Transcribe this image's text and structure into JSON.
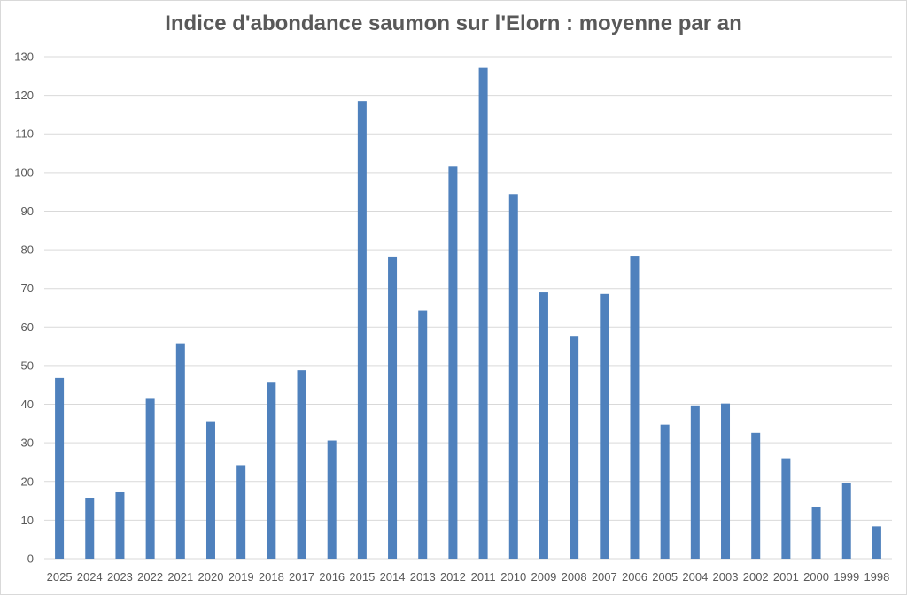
{
  "chart_data": {
    "type": "bar",
    "title": "Indice d'abondance saumon sur l'Elorn : moyenne par an",
    "xlabel": "",
    "ylabel": "",
    "categories": [
      "2025",
      "2024",
      "2023",
      "2022",
      "2021",
      "2020",
      "2019",
      "2018",
      "2017",
      "2016",
      "2015",
      "2014",
      "2013",
      "2012",
      "2011",
      "2010",
      "2009",
      "2008",
      "2007",
      "2006",
      "2005",
      "2004",
      "2003",
      "2002",
      "2001",
      "2000",
      "1999",
      "1998"
    ],
    "values": [
      46.8,
      15.8,
      17.2,
      41.4,
      55.8,
      35.4,
      24.2,
      45.8,
      48.8,
      30.6,
      118.5,
      78.2,
      64.3,
      101.5,
      127.1,
      94.4,
      69.0,
      57.5,
      68.6,
      78.4,
      34.7,
      39.7,
      40.2,
      32.6,
      26.0,
      13.3,
      19.7,
      8.4
    ],
    "ylim": [
      0,
      130
    ],
    "yticks": [
      0,
      10,
      20,
      30,
      40,
      50,
      60,
      70,
      80,
      90,
      100,
      110,
      120,
      130
    ],
    "grid": true,
    "legend": "none",
    "bar_color": "#4f81bd",
    "grid_color": "#d9d9d9"
  }
}
